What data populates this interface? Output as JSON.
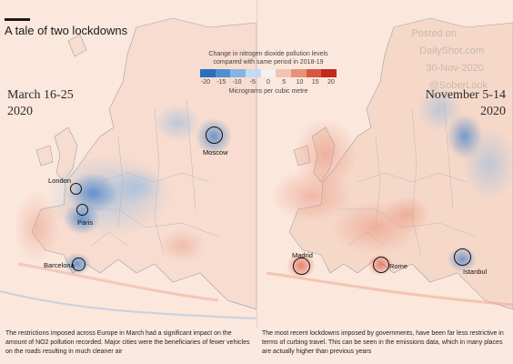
{
  "title": "A tale of two lockdowns",
  "watermark": [
    "Posted on",
    "DailyShot.com",
    "30-Nov-2020",
    "@SoberLook"
  ],
  "legend": {
    "heading_line1": "Change in nitrogen dioxide pollution levels",
    "heading_line2": "compared with same period in 2018-19",
    "ticks": [
      "-20",
      "-15",
      "-10",
      "-5",
      "0",
      "5",
      "10",
      "15",
      "20"
    ],
    "tick_values": [
      -20,
      -15,
      -10,
      -5,
      0,
      5,
      10,
      15,
      20
    ],
    "unit": "Micrograms per cubic metre",
    "colors": [
      "#2a6fbe",
      "#4f8fd3",
      "#86b5e4",
      "#c2dbf2",
      "#f3f0f0",
      "#f3c4b6",
      "#e8907a",
      "#d9573f",
      "#c22b1c"
    ]
  },
  "panels": {
    "left": {
      "period_line1": "March 16-25",
      "period_line2": "2020",
      "cities": [
        "Moscow",
        "London",
        "Paris",
        "Barcelona"
      ],
      "caption": "The restrictions imposed across Europe in March had a significant impact on the amount of NO2 pollution recorded. Major cities were the beneficiaries of fewer vehicles on the roads resulting in much cleaner air"
    },
    "right": {
      "period_line1": "November 5-14",
      "period_line2": "2020",
      "cities": [
        "Madrid",
        "Rome",
        "Istanbul"
      ],
      "caption": "The most recent lockdowns imposed by governments, have been far less restrictive in terms of curbing travel. This can be seen in the emissions data, which in many places are actually higher than previous years"
    }
  }
}
